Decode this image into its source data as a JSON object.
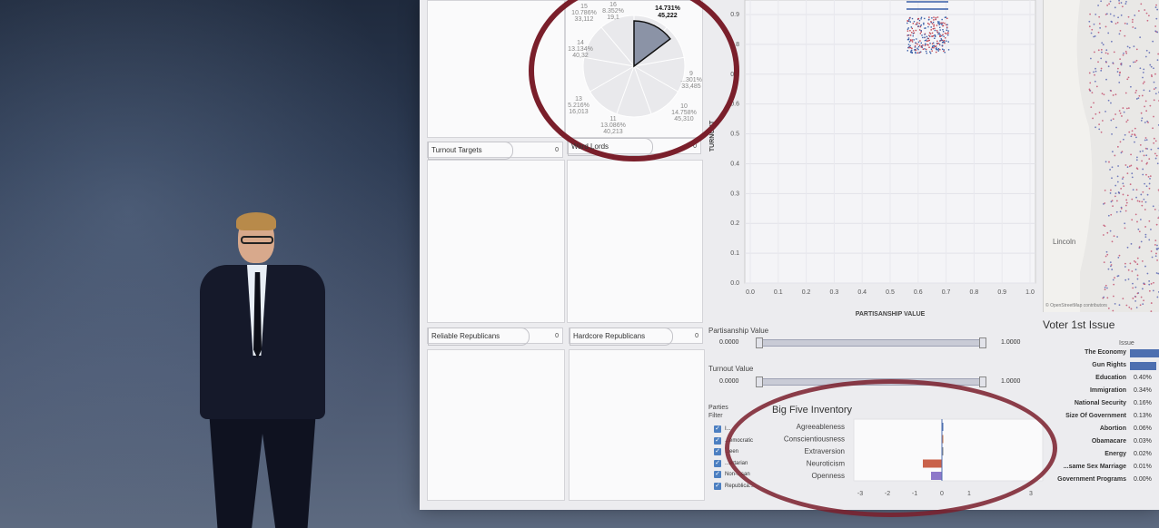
{
  "segments": [
    {
      "label": "Turnout Targets",
      "count": "0"
    },
    {
      "label": "Ward Lords",
      "count": "0"
    },
    {
      "label": "Reliable Republicans",
      "count": "0"
    },
    {
      "label": "Hardcore Republicans",
      "count": "0"
    }
  ],
  "pie": {
    "highlight_pct": "14.731%",
    "highlight_count": "45,222",
    "slices": [
      {
        "num": "15",
        "pct": "10.786%",
        "count": "33,112"
      },
      {
        "num": "16",
        "pct": "8.352%",
        "count": "19,1"
      },
      {
        "num": "14",
        "pct": "13.134%",
        "count": "40,32"
      },
      {
        "num": "13",
        "pct": "5.216%",
        "count": "16,013"
      },
      {
        "num": "11",
        "pct": "13.086%",
        "count": "40,213"
      },
      {
        "num": "10",
        "pct": "14.758%",
        "count": "45,310"
      },
      {
        "num": "9",
        "pct": "...301%",
        "count": "33,485"
      }
    ]
  },
  "scatter": {
    "y_axis_title": "TURNOUT",
    "x_axis_title": "PARTISANSHIP VALUE",
    "y_ticks": [
      "0.0",
      "0.1",
      "0.2",
      "0.3",
      "0.4",
      "0.5",
      "0.6",
      "0.7",
      "0.8",
      "0.9"
    ],
    "x_ticks": [
      "0.0",
      "0.1",
      "0.2",
      "0.3",
      "0.4",
      "0.5",
      "0.6",
      "0.7",
      "0.8",
      "0.9",
      "1.0"
    ]
  },
  "sliders": [
    {
      "label": "Partisanship Value",
      "min": "0.0000",
      "max": "1.0000"
    },
    {
      "label": "Turnout Value",
      "min": "0.0000",
      "max": "1.0000"
    }
  ],
  "parties_filter": {
    "title_line1": "Parties",
    "title_line2": "Filter",
    "items": [
      "I...",
      "...emocratic",
      "...een",
      "...ertarian",
      "Non-...san",
      "Republica..."
    ]
  },
  "big_five": {
    "title": "Big Five Inventory",
    "traits": [
      "Agreeableness",
      "Conscientiousness",
      "Extraversion",
      "Neuroticism",
      "Openness"
    ],
    "values": [
      0.05,
      0.05,
      0.0,
      -0.7,
      -0.4
    ],
    "x_ticks": [
      "-3",
      "-2",
      "-1",
      "0",
      "1",
      "3"
    ],
    "colors": [
      "#4d6fb0",
      "#d07a4a",
      "#888888",
      "#c9614a",
      "#8d78c9"
    ]
  },
  "map": {
    "city_label": "Lincoln",
    "credit": "© OpenStreetMap contributors"
  },
  "voter_issues": {
    "title": "Voter 1st Issue",
    "column_header": "Issue",
    "items": [
      {
        "issue": "The Economy",
        "pct": "",
        "bar": 1.0
      },
      {
        "issue": "Gun Rights",
        "pct": "",
        "bar": 0.85
      },
      {
        "issue": "Education",
        "pct": "0.40%",
        "bar": 0
      },
      {
        "issue": "Immigration",
        "pct": "0.34%",
        "bar": 0
      },
      {
        "issue": "National Security",
        "pct": "0.16%",
        "bar": 0
      },
      {
        "issue": "Size Of Government",
        "pct": "0.13%",
        "bar": 0
      },
      {
        "issue": "Abortion",
        "pct": "0.06%",
        "bar": 0
      },
      {
        "issue": "Obamacare",
        "pct": "0.03%",
        "bar": 0
      },
      {
        "issue": "Energy",
        "pct": "0.02%",
        "bar": 0
      },
      {
        "issue": "...same Sex Marriage",
        "pct": "0.01%",
        "bar": 0
      },
      {
        "issue": "Government Programs",
        "pct": "0.00%",
        "bar": 0
      }
    ]
  },
  "colors": {
    "annotation_circle": "#7a1f2b",
    "accent_blue": "#4d6fb0"
  }
}
